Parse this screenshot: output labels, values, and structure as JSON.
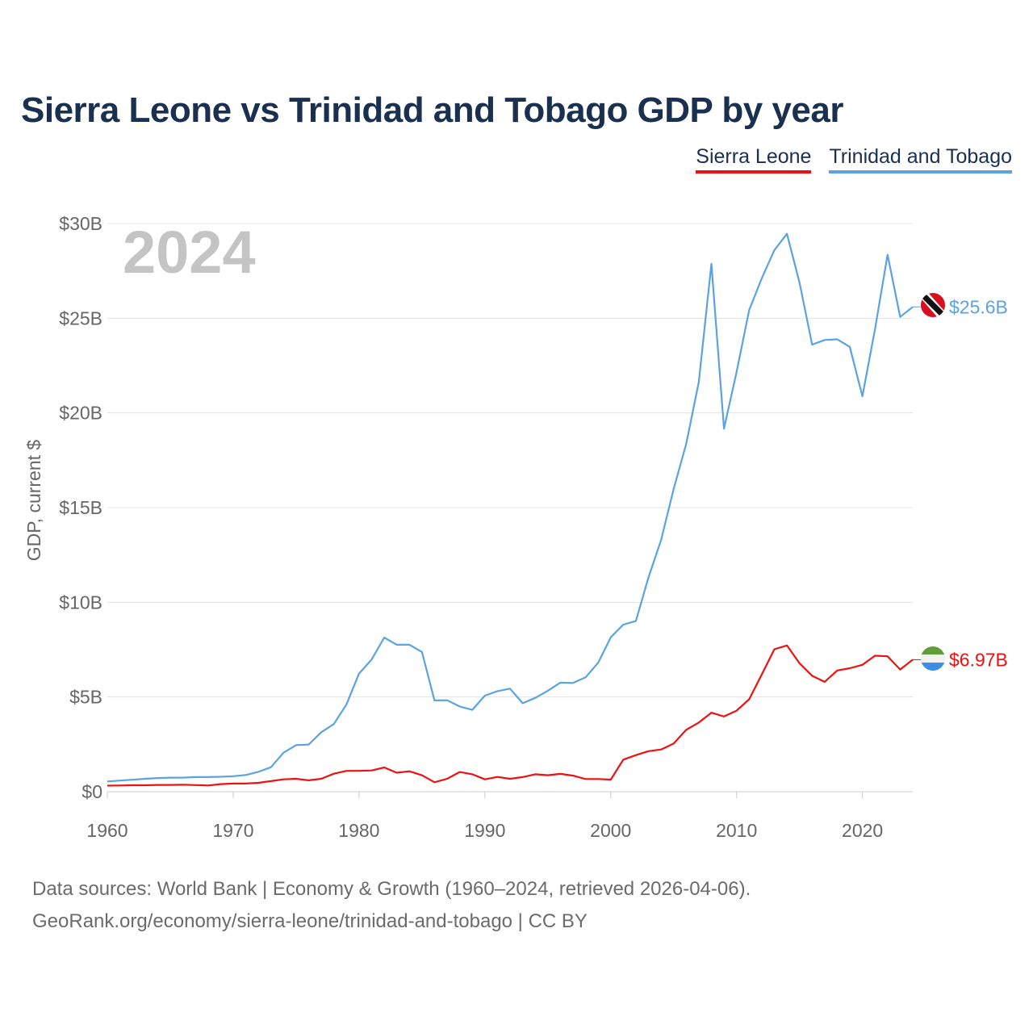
{
  "title": "Sierra Leone vs Trinidad and Tobago GDP by year",
  "legend": [
    {
      "label": "Sierra Leone",
      "color": "#ee1111"
    },
    {
      "label": "Trinidad and Tobago",
      "color": "#5ba3e0"
    }
  ],
  "footer": {
    "line1": "Data sources: World Bank | Economy & Growth (1960–2024, retrieved 2026-04-06).",
    "line2": "GeoRank.org/economy/sierra-leone/trinidad-and-tobago | CC BY"
  },
  "chart_data": {
    "type": "line",
    "title": "Sierra Leone vs Trinidad and Tobago GDP by year",
    "xlabel": "",
    "ylabel": "GDP, current $",
    "year_label": "2024",
    "xlim": [
      1960,
      2024
    ],
    "ylim": [
      0,
      30
    ],
    "x_ticks": [
      1960,
      1970,
      1980,
      1990,
      2000,
      2010,
      2020
    ],
    "y_ticks": [
      0,
      5,
      10,
      15,
      20,
      25,
      30
    ],
    "y_tick_labels": [
      "$0",
      "$5B",
      "$10B",
      "$15B",
      "$20B",
      "$25B",
      "$30B"
    ],
    "grid": true,
    "units": "billions of current US$",
    "x": [
      1960,
      1961,
      1962,
      1963,
      1964,
      1965,
      1966,
      1967,
      1968,
      1969,
      1970,
      1971,
      1972,
      1973,
      1974,
      1975,
      1976,
      1977,
      1978,
      1979,
      1980,
      1981,
      1982,
      1983,
      1984,
      1985,
      1986,
      1987,
      1988,
      1989,
      1990,
      1991,
      1992,
      1993,
      1994,
      1995,
      1996,
      1997,
      1998,
      1999,
      2000,
      2001,
      2002,
      2003,
      2004,
      2005,
      2006,
      2007,
      2008,
      2009,
      2010,
      2011,
      2012,
      2013,
      2014,
      2015,
      2016,
      2017,
      2018,
      2019,
      2020,
      2021,
      2022,
      2023,
      2024
    ],
    "series": [
      {
        "name": "Sierra Leone",
        "color": "#ee1111",
        "end_label": "$6.97B",
        "flag": "sierra-leone-flag",
        "values": [
          0.32,
          0.33,
          0.34,
          0.34,
          0.36,
          0.36,
          0.37,
          0.35,
          0.33,
          0.4,
          0.43,
          0.43,
          0.47,
          0.56,
          0.65,
          0.68,
          0.6,
          0.68,
          0.95,
          1.1,
          1.1,
          1.12,
          1.28,
          1.0,
          1.08,
          0.87,
          0.5,
          0.68,
          1.04,
          0.92,
          0.65,
          0.78,
          0.68,
          0.77,
          0.92,
          0.87,
          0.94,
          0.85,
          0.67,
          0.67,
          0.64,
          1.69,
          1.93,
          2.14,
          2.23,
          2.54,
          3.27,
          3.65,
          4.17,
          3.97,
          4.28,
          4.88,
          6.19,
          7.52,
          7.72,
          6.78,
          6.12,
          5.8,
          6.4,
          6.52,
          6.7,
          7.18,
          7.15,
          6.45,
          6.97
        ]
      },
      {
        "name": "Trinidad and Tobago",
        "color": "#5ba3e0",
        "end_label": "$25.6B",
        "flag": "trinidad-and-tobago-flag",
        "values": [
          0.54,
          0.59,
          0.63,
          0.68,
          0.72,
          0.74,
          0.74,
          0.77,
          0.77,
          0.79,
          0.82,
          0.88,
          1.05,
          1.29,
          2.06,
          2.46,
          2.49,
          3.14,
          3.57,
          4.61,
          6.24,
          6.98,
          8.14,
          7.76,
          7.76,
          7.38,
          4.82,
          4.83,
          4.5,
          4.32,
          5.07,
          5.31,
          5.44,
          4.67,
          4.95,
          5.33,
          5.76,
          5.74,
          6.04,
          6.81,
          8.15,
          8.82,
          9.01,
          11.31,
          13.28,
          15.98,
          18.37,
          21.64,
          27.87,
          19.17,
          22.16,
          25.43,
          27.11,
          28.59,
          29.46,
          26.88,
          23.61,
          23.85,
          23.89,
          23.49,
          20.88,
          24.42,
          28.35,
          25.07,
          25.6
        ]
      }
    ]
  }
}
